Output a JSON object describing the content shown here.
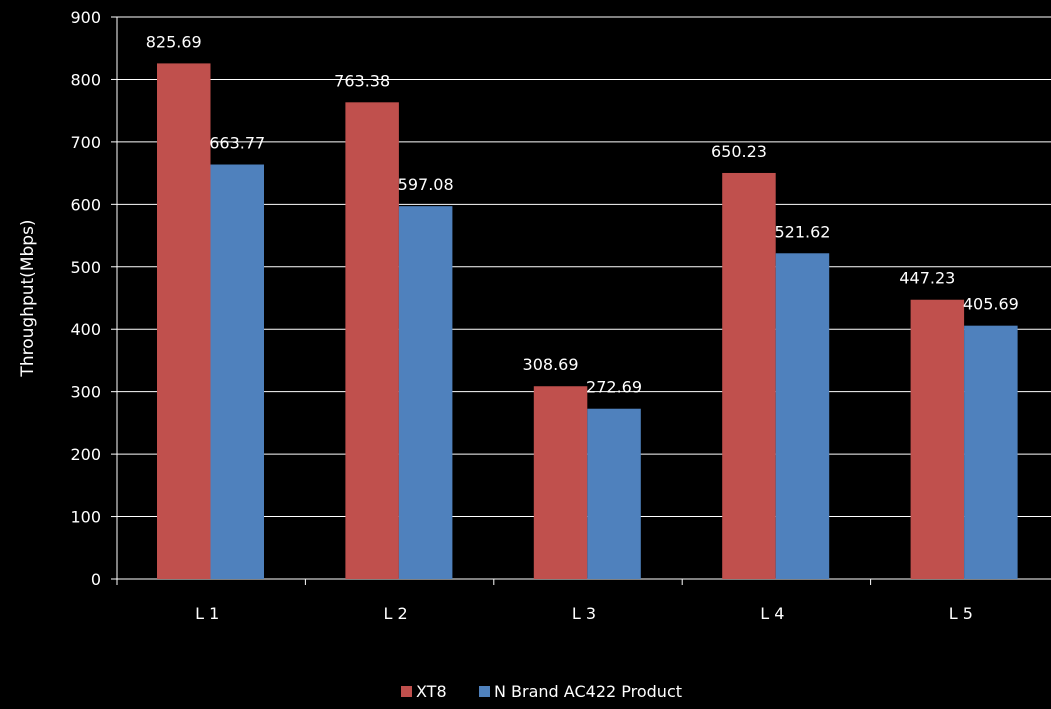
{
  "chart_data": {
    "type": "bar",
    "categories": [
      "L 1",
      "L 2",
      "L 3",
      "L 4",
      "L 5"
    ],
    "series": [
      {
        "name": "XT8",
        "values": [
          825.69,
          763.38,
          308.69,
          650.23,
          447.23
        ],
        "color": "#c0504d"
      },
      {
        "name": "N Brand AC422 Product",
        "values": [
          663.77,
          597.08,
          272.69,
          521.62,
          405.69
        ],
        "color": "#4f81bd"
      }
    ],
    "data_labels": [
      [
        "825.69",
        "763.38",
        "308.69",
        "650.23",
        "447.23"
      ],
      [
        "663.77",
        "597.08",
        "272.69",
        "521.62",
        "405.69"
      ]
    ],
    "title": "",
    "xlabel": "",
    "ylabel": "Throughput(Mbps)",
    "ylim": [
      0,
      900
    ],
    "yticks": [
      0,
      100,
      200,
      300,
      400,
      500,
      600,
      700,
      800,
      900
    ],
    "grid": true,
    "legend_position": "bottom",
    "background": "#000000",
    "text_color": "#ffffff",
    "grid_color": "#ffffff"
  }
}
